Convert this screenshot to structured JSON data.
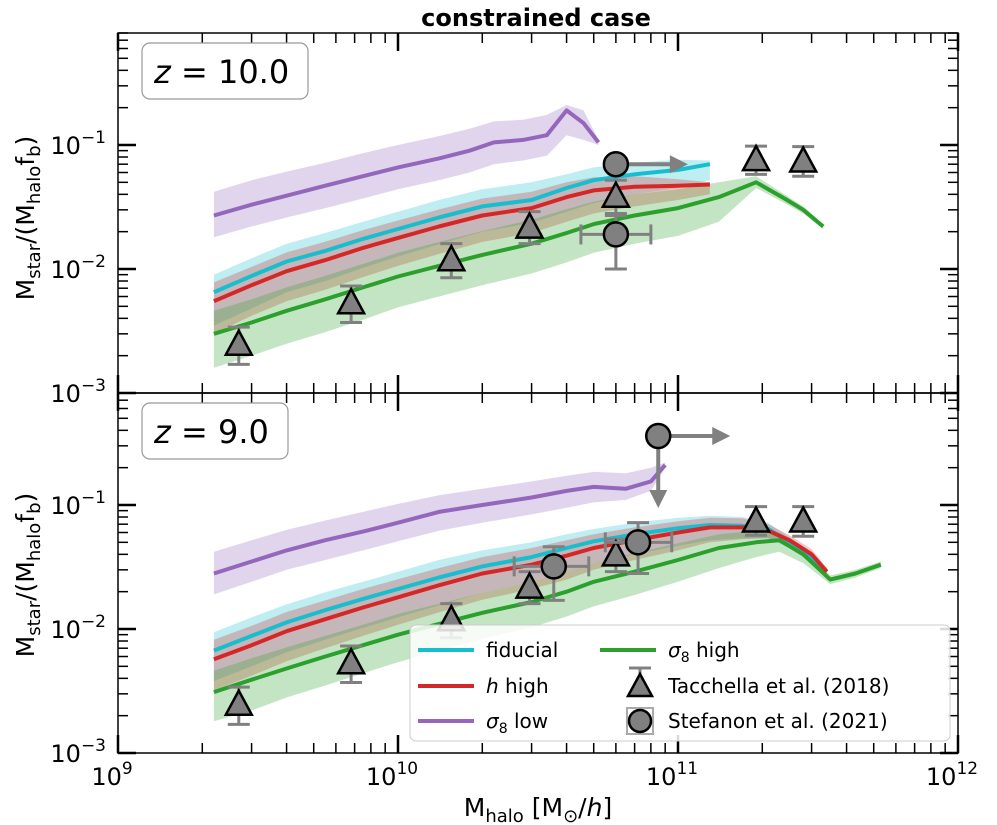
{
  "title": "constrained case",
  "xlabel": {
    "base": "M",
    "sub": "halo",
    "unit_open": " [M",
    "sun": "⊙",
    "slash": "/",
    "h": "h",
    "unit_close": "]"
  },
  "ylabel": {
    "m1": "M",
    "sub1": "star",
    "mid": "/(M",
    "sub2": "halo",
    "f": "f",
    "sub3": "b",
    "close": ")"
  },
  "tick_labels": {
    "x": [
      {
        "base": "10",
        "exp": "9",
        "value": 1000000000.0
      },
      {
        "base": "10",
        "exp": "10",
        "value": 10000000000.0
      },
      {
        "base": "10",
        "exp": "11",
        "value": 100000000000.0
      },
      {
        "base": "10",
        "exp": "12",
        "value": 1000000000000.0
      }
    ],
    "y": [
      {
        "base": "10",
        "exp": "−3",
        "value": 0.001
      },
      {
        "base": "10",
        "exp": "−2",
        "value": 0.01
      },
      {
        "base": "10",
        "exp": "−1",
        "value": 0.1
      }
    ]
  },
  "legend": {
    "fiducial": "fiducial",
    "h_high_italic": "h",
    "h_high_rest": " high",
    "s8_low_sym": "σ",
    "s8_low_sub": "8",
    "s8_low_rest": " low",
    "s8_high_sym": "σ",
    "s8_high_sub": "8",
    "s8_high_rest": " high",
    "tacchella": "Tacchella et al. (2018)",
    "stefanon": "Stefanon et al. (2021)"
  },
  "colors": {
    "fiducial": "#17becf",
    "h_high": "#d62728",
    "s8_low": "#9467bd",
    "s8_high": "#2ca02c",
    "obs_fill": "#808080",
    "obs_err": "#808080"
  },
  "chart_data": [
    {
      "type": "line",
      "panel_label": {
        "z": "z",
        "eq": " = 10.0"
      },
      "xscale": "log",
      "yscale": "log",
      "xlim": [
        1000000000.0,
        1000000000000.0
      ],
      "ylim": [
        0.001,
        0.8
      ],
      "series": [
        {
          "name": "fiducial",
          "x": [
            2200000000.0,
            3000000000.0,
            4000000000.0,
            5500000000.0,
            7500000000.0,
            10000000000.0,
            14000000000.0,
            20000000000.0,
            30000000000.0,
            40000000000.0,
            50000000000.0,
            70000000000.0,
            100000000000.0,
            130000000000.0
          ],
          "y": [
            0.0065,
            0.0088,
            0.0115,
            0.014,
            0.0175,
            0.021,
            0.026,
            0.032,
            0.036,
            0.045,
            0.052,
            0.058,
            0.063,
            0.07
          ],
          "lo": [
            0.0035,
            0.0048,
            0.0065,
            0.008,
            0.0102,
            0.0126,
            0.0158,
            0.02,
            0.0235,
            0.029,
            0.034,
            0.04,
            0.045,
            0.052
          ],
          "hi": [
            0.009,
            0.0122,
            0.016,
            0.0195,
            0.024,
            0.029,
            0.036,
            0.044,
            0.05,
            0.058,
            0.066,
            0.072,
            0.076,
            0.075
          ]
        },
        {
          "name": "h high",
          "x": [
            2200000000.0,
            3000000000.0,
            4000000000.0,
            5500000000.0,
            7500000000.0,
            10000000000.0,
            14000000000.0,
            20000000000.0,
            30000000000.0,
            40000000000.0,
            50000000000.0,
            70000000000.0,
            100000000000.0,
            130000000000.0
          ],
          "y": [
            0.0055,
            0.0074,
            0.0096,
            0.0118,
            0.0148,
            0.0178,
            0.022,
            0.027,
            0.031,
            0.038,
            0.043,
            0.046,
            0.047,
            0.048
          ],
          "lo": [
            0.003,
            0.0042,
            0.0055,
            0.0068,
            0.0086,
            0.0106,
            0.0132,
            0.0165,
            0.0195,
            0.024,
            0.028,
            0.032,
            0.036,
            0.04
          ],
          "hi": [
            0.0078,
            0.0104,
            0.0136,
            0.0166,
            0.0206,
            0.0246,
            0.0302,
            0.037,
            0.042,
            0.05,
            0.055,
            0.056,
            0.053,
            0.05
          ]
        },
        {
          "name": "σ8 low",
          "x": [
            2200000000.0,
            3000000000.0,
            4000000000.0,
            5500000000.0,
            7500000000.0,
            10000000000.0,
            14000000000.0,
            18000000000.0,
            22000000000.0,
            28000000000.0,
            34000000000.0,
            40000000000.0,
            46000000000.0,
            52000000000.0
          ],
          "y": [
            0.027,
            0.033,
            0.039,
            0.047,
            0.056,
            0.066,
            0.078,
            0.09,
            0.105,
            0.11,
            0.12,
            0.19,
            0.15,
            0.105
          ],
          "lo": [
            0.018,
            0.022,
            0.026,
            0.031,
            0.037,
            0.044,
            0.052,
            0.06,
            0.07,
            0.075,
            0.082,
            0.12,
            0.11,
            0.1
          ],
          "hi": [
            0.042,
            0.052,
            0.061,
            0.072,
            0.086,
            0.1,
            0.118,
            0.135,
            0.155,
            0.16,
            0.175,
            0.21,
            0.19,
            0.11
          ]
        },
        {
          "name": "σ8 high",
          "x": [
            2200000000.0,
            3000000000.0,
            4000000000.0,
            5500000000.0,
            7500000000.0,
            10000000000.0,
            14000000000.0,
            20000000000.0,
            30000000000.0,
            40000000000.0,
            50000000000.0,
            70000000000.0,
            100000000000.0,
            140000000000.0,
            190000000000.0,
            240000000000.0,
            280000000000.0,
            330000000000.0
          ],
          "y": [
            0.003,
            0.0037,
            0.0046,
            0.0057,
            0.0071,
            0.0087,
            0.0106,
            0.013,
            0.016,
            0.0195,
            0.023,
            0.027,
            0.031,
            0.038,
            0.05,
            0.037,
            0.03,
            0.022
          ],
          "lo": [
            0.0016,
            0.002,
            0.0025,
            0.0031,
            0.0039,
            0.0049,
            0.006,
            0.0074,
            0.0092,
            0.0113,
            0.0135,
            0.016,
            0.0185,
            0.024,
            0.045,
            0.034,
            0.028,
            0.021
          ],
          "hi": [
            0.0046,
            0.0057,
            0.0071,
            0.0088,
            0.011,
            0.0135,
            0.0165,
            0.0202,
            0.025,
            0.0303,
            0.035,
            0.04,
            0.044,
            0.05,
            0.056,
            0.04,
            0.032,
            0.023
          ]
        }
      ],
      "tacchella": [
        {
          "x": 2700000000.0,
          "y": 0.0025,
          "ylo": 0.0017,
          "yhi": 0.0034
        },
        {
          "x": 6800000000.0,
          "y": 0.0054,
          "ylo": 0.0037,
          "yhi": 0.0073
        },
        {
          "x": 15500000000.0,
          "y": 0.012,
          "ylo": 0.0085,
          "yhi": 0.016
        },
        {
          "x": 29500000000.0,
          "y": 0.022,
          "ylo": 0.016,
          "yhi": 0.029
        },
        {
          "x": 60000000000.0,
          "y": 0.039,
          "ylo": 0.028,
          "yhi": 0.052
        },
        {
          "x": 190000000000.0,
          "y": 0.077,
          "ylo": 0.058,
          "yhi": 0.098
        },
        {
          "x": 280000000000.0,
          "y": 0.075,
          "ylo": 0.056,
          "yhi": 0.097
        }
      ],
      "stefanon": [
        {
          "x": 60000000000.0,
          "y": 0.07,
          "lower_limit_x": true
        },
        {
          "x": 60000000000.0,
          "y": 0.019,
          "xlo": 45000000000.0,
          "xhi": 80000000000.0,
          "ylo": 0.01,
          "yhi": 0.027
        }
      ]
    },
    {
      "type": "line",
      "panel_label": {
        "z": "z",
        "eq": " = 9.0"
      },
      "xscale": "log",
      "yscale": "log",
      "xlim": [
        1000000000.0,
        1000000000000.0
      ],
      "ylim": [
        0.001,
        0.8
      ],
      "series": [
        {
          "name": "fiducial",
          "x": [
            2200000000.0,
            3000000000.0,
            4000000000.0,
            5500000000.0,
            7500000000.0,
            10000000000.0,
            14000000000.0,
            20000000000.0,
            30000000000.0,
            40000000000.0,
            50000000000.0,
            70000000000.0,
            100000000000.0,
            130000000000.0,
            170000000000.0,
            210000000000.0,
            250000000000.0,
            300000000000.0,
            340000000000.0
          ],
          "y": [
            0.0067,
            0.0088,
            0.0113,
            0.0142,
            0.0175,
            0.021,
            0.026,
            0.032,
            0.038,
            0.045,
            0.051,
            0.058,
            0.065,
            0.069,
            0.068,
            0.064,
            0.05,
            0.038,
            0.029
          ],
          "lo": [
            0.0038,
            0.005,
            0.0065,
            0.0082,
            0.0102,
            0.0124,
            0.0155,
            0.0195,
            0.024,
            0.029,
            0.034,
            0.04,
            0.047,
            0.052,
            0.054,
            0.054,
            0.045,
            0.034,
            0.027
          ],
          "hi": [
            0.0094,
            0.0124,
            0.0158,
            0.0198,
            0.024,
            0.029,
            0.036,
            0.043,
            0.05,
            0.058,
            0.064,
            0.072,
            0.079,
            0.082,
            0.08,
            0.072,
            0.055,
            0.042,
            0.031
          ]
        },
        {
          "name": "h high",
          "x": [
            2200000000.0,
            3000000000.0,
            4000000000.0,
            5500000000.0,
            7500000000.0,
            10000000000.0,
            14000000000.0,
            20000000000.0,
            30000000000.0,
            40000000000.0,
            50000000000.0,
            70000000000.0,
            100000000000.0,
            130000000000.0,
            170000000000.0,
            210000000000.0,
            250000000000.0,
            300000000000.0,
            340000000000.0
          ],
          "y": [
            0.0057,
            0.0074,
            0.0096,
            0.012,
            0.0149,
            0.018,
            0.0225,
            0.028,
            0.033,
            0.039,
            0.045,
            0.052,
            0.06,
            0.066,
            0.066,
            0.062,
            0.052,
            0.04,
            0.029
          ],
          "lo": [
            0.0032,
            0.0042,
            0.0055,
            0.007,
            0.0088,
            0.0108,
            0.0136,
            0.0172,
            0.021,
            0.025,
            0.03,
            0.036,
            0.043,
            0.05,
            0.053,
            0.054,
            0.047,
            0.036,
            0.027
          ],
          "hi": [
            0.0082,
            0.0106,
            0.0137,
            0.017,
            0.021,
            0.0252,
            0.031,
            0.038,
            0.045,
            0.052,
            0.058,
            0.066,
            0.074,
            0.079,
            0.078,
            0.07,
            0.057,
            0.044,
            0.031
          ]
        },
        {
          "name": "σ8 low",
          "x": [
            2200000000.0,
            3000000000.0,
            4000000000.0,
            5500000000.0,
            7500000000.0,
            10000000000.0,
            14000000000.0,
            20000000000.0,
            30000000000.0,
            40000000000.0,
            50000000000.0,
            65000000000.0,
            80000000000.0,
            90000000000.0
          ],
          "y": [
            0.028,
            0.035,
            0.043,
            0.052,
            0.061,
            0.072,
            0.088,
            0.1,
            0.115,
            0.13,
            0.14,
            0.135,
            0.155,
            0.21
          ],
          "lo": [
            0.019,
            0.024,
            0.03,
            0.036,
            0.043,
            0.051,
            0.062,
            0.072,
            0.084,
            0.095,
            0.105,
            0.11,
            0.13,
            0.2
          ],
          "hi": [
            0.042,
            0.052,
            0.063,
            0.075,
            0.088,
            0.102,
            0.12,
            0.135,
            0.155,
            0.172,
            0.185,
            0.18,
            0.2,
            0.22
          ]
        },
        {
          "name": "σ8 high",
          "x": [
            2200000000.0,
            3000000000.0,
            4000000000.0,
            5500000000.0,
            7500000000.0,
            10000000000.0,
            14000000000.0,
            20000000000.0,
            30000000000.0,
            40000000000.0,
            50000000000.0,
            70000000000.0,
            100000000000.0,
            140000000000.0,
            190000000000.0,
            230000000000.0,
            280000000000.0,
            350000000000.0,
            430000000000.0,
            530000000000.0
          ],
          "y": [
            0.0031,
            0.0039,
            0.0048,
            0.006,
            0.0074,
            0.009,
            0.011,
            0.0135,
            0.0165,
            0.02,
            0.024,
            0.029,
            0.036,
            0.045,
            0.05,
            0.052,
            0.04,
            0.025,
            0.028,
            0.033
          ],
          "lo": [
            0.0018,
            0.0022,
            0.0028,
            0.0035,
            0.0044,
            0.0054,
            0.0067,
            0.0083,
            0.0103,
            0.0126,
            0.0152,
            0.0188,
            0.024,
            0.031,
            0.038,
            0.042,
            0.034,
            0.023,
            0.026,
            0.031
          ],
          "hi": [
            0.0046,
            0.0058,
            0.0071,
            0.0088,
            0.0108,
            0.0132,
            0.016,
            0.0195,
            0.024,
            0.029,
            0.034,
            0.041,
            0.049,
            0.058,
            0.062,
            0.06,
            0.046,
            0.027,
            0.03,
            0.035
          ]
        }
      ],
      "tacchella": [
        {
          "x": 2700000000.0,
          "y": 0.0025,
          "ylo": 0.0017,
          "yhi": 0.0034
        },
        {
          "x": 6800000000.0,
          "y": 0.0054,
          "ylo": 0.0037,
          "yhi": 0.0073
        },
        {
          "x": 15500000000.0,
          "y": 0.012,
          "ylo": 0.0085,
          "yhi": 0.016
        },
        {
          "x": 29500000000.0,
          "y": 0.022,
          "ylo": 0.016,
          "yhi": 0.029
        },
        {
          "x": 60000000000.0,
          "y": 0.04,
          "ylo": 0.029,
          "yhi": 0.053
        },
        {
          "x": 190000000000.0,
          "y": 0.075,
          "ylo": 0.057,
          "yhi": 0.097
        },
        {
          "x": 280000000000.0,
          "y": 0.075,
          "ylo": 0.056,
          "yhi": 0.097
        }
      ],
      "stefanon": [
        {
          "x": 36000000000.0,
          "y": 0.032,
          "xlo": 26000000000.0,
          "xhi": 48000000000.0,
          "ylo": 0.017,
          "yhi": 0.046
        },
        {
          "x": 72000000000.0,
          "y": 0.05,
          "xlo": 55000000000.0,
          "xhi": 95000000000.0,
          "ylo": 0.028,
          "yhi": 0.072
        },
        {
          "x": 85000000000.0,
          "y": 0.36,
          "lower_limit_x": true,
          "upper_limit_y": true
        }
      ]
    }
  ]
}
